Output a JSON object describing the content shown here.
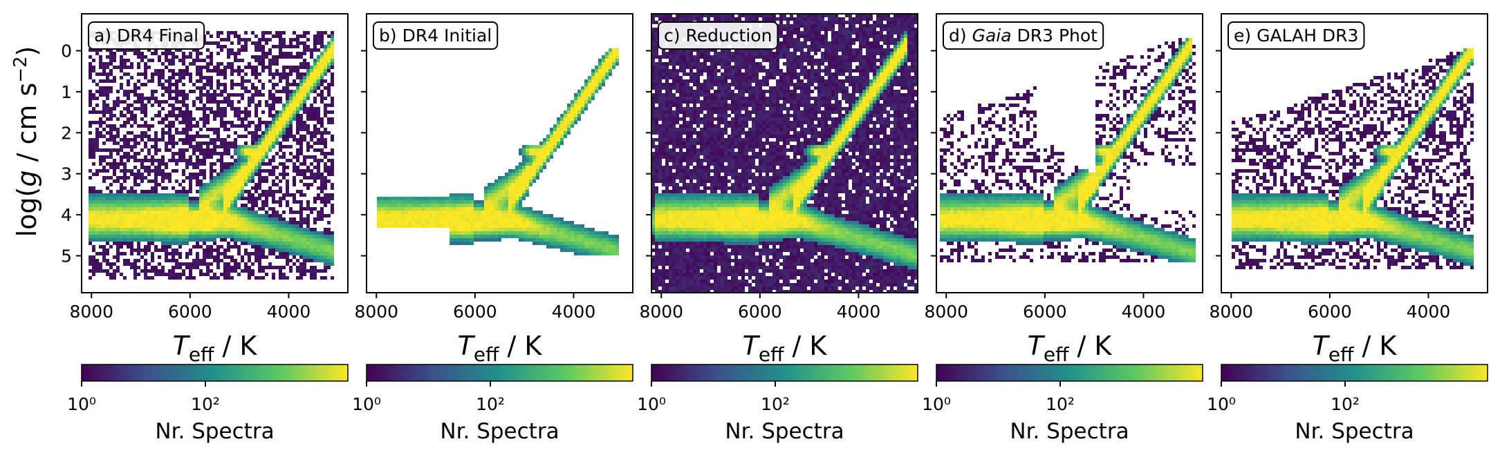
{
  "chart_data": {
    "type": "heatmap",
    "y_axis_label": "log(g / cm s⁻²)",
    "x_axis_label": "T_eff / K",
    "x_ticks": [
      8000,
      6000,
      4000
    ],
    "y_ticks": [
      0,
      1,
      2,
      3,
      4,
      5
    ],
    "xlim": [
      8200,
      2800
    ],
    "ylim": [
      5.9,
      -0.9
    ],
    "x_inverted": true,
    "y_inverted": true,
    "colorbar": {
      "label": "Nr. Spectra",
      "scale": "log",
      "tick_labels": [
        "10⁰",
        "10²"
      ],
      "tick_values": [
        1,
        100
      ],
      "range": [
        1,
        20000
      ],
      "colormap": "viridis",
      "colors": [
        "#440154",
        "#3b528b",
        "#21918c",
        "#5ec962",
        "#fde725"
      ]
    },
    "panels": [
      {
        "label": "a) DR4 Final",
        "title_italic_word": "",
        "density_peak_teff": 5800,
        "density_peak_logg": 4.2
      },
      {
        "label": "b) DR4 Initial",
        "title_italic_word": "",
        "density_peak_teff": 5800,
        "density_peak_logg": 4.1
      },
      {
        "label": "c) Reduction",
        "title_italic_word": "",
        "density_peak_teff": 5900,
        "density_peak_logg": 4.1
      },
      {
        "label": "d) Gaia DR3 Phot",
        "title_italic_word": "Gaia",
        "density_peak_teff": 5800,
        "density_peak_logg": 4.2
      },
      {
        "label": "e) GALAH DR3",
        "title_italic_word": "",
        "density_peak_teff": 5800,
        "density_peak_logg": 4.2
      }
    ]
  }
}
